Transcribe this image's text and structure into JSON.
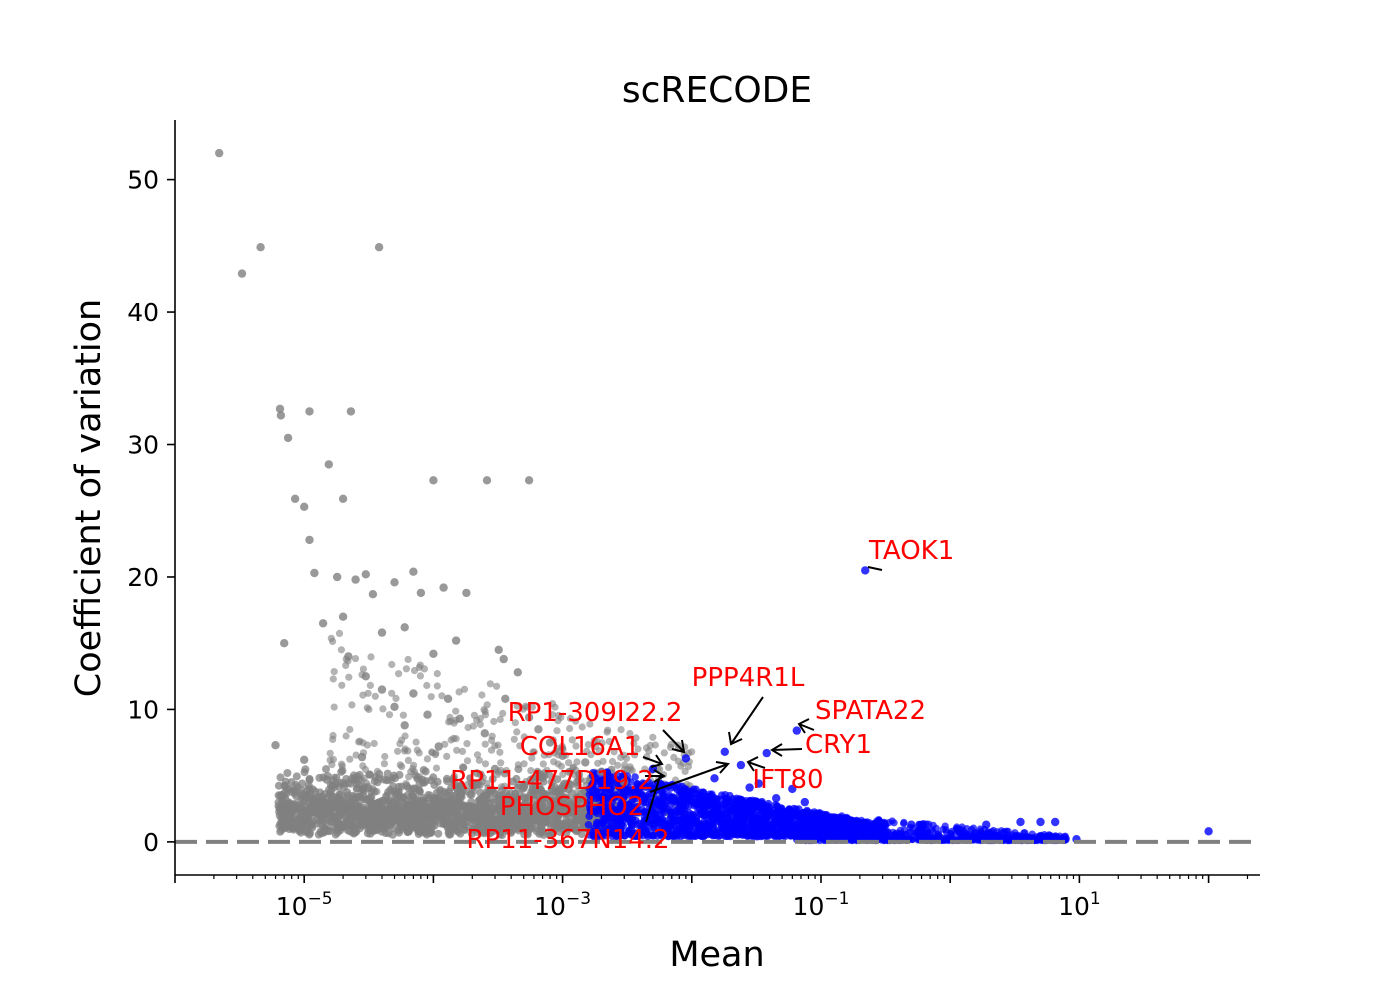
{
  "chart_data": {
    "type": "scatter",
    "title": "scRECODE",
    "xlabel": "Mean",
    "ylabel": "Coefficient of variation",
    "xscale": "log",
    "xlim": [
      1e-06,
      250
    ],
    "ylim": [
      -2.5,
      54.5
    ],
    "grid": false,
    "reference_line": {
      "y": 0,
      "style": "dashed",
      "color": "#808080"
    },
    "xticks": [
      {
        "base": "10",
        "exp": "−5",
        "value": 1e-05
      },
      {
        "base": "10",
        "exp": "−3",
        "value": 0.001
      },
      {
        "base": "10",
        "exp": "−1",
        "value": 0.1
      },
      {
        "base": "10",
        "exp": "1",
        "value": 10
      }
    ],
    "yticks": [
      {
        "label": "0",
        "value": 0
      },
      {
        "label": "10",
        "value": 10
      },
      {
        "label": "20",
        "value": 20
      },
      {
        "label": "30",
        "value": 30
      },
      {
        "label": "40",
        "value": 40
      },
      {
        "label": "50",
        "value": 50
      }
    ],
    "colors": {
      "gray_series": "#808080",
      "blue_series": "#0000ff",
      "annotation": "#ff0000",
      "arrow": "#000000"
    },
    "series": [
      {
        "color": "gray",
        "points": [
          [
            2.2e-06,
            52
          ],
          [
            3.3e-06,
            42.9
          ],
          [
            4.6e-06,
            44.9
          ],
          [
            3.8e-05,
            44.9
          ],
          [
            6.5e-06,
            32.7
          ],
          [
            6.6e-06,
            32.2
          ],
          [
            1.1e-05,
            32.5
          ],
          [
            2.3e-05,
            32.5
          ],
          [
            7.5e-06,
            30.5
          ],
          [
            8.5e-06,
            25.9
          ],
          [
            1e-05,
            25.3
          ],
          [
            1.1e-05,
            22.8
          ],
          [
            1.55e-05,
            28.5
          ],
          [
            2e-05,
            25.9
          ],
          [
            0.0001,
            27.3
          ],
          [
            0.00026,
            27.3
          ],
          [
            0.00055,
            27.3
          ],
          [
            7e-06,
            15.0
          ],
          [
            1.2e-05,
            20.3
          ],
          [
            1.4e-05,
            16.5
          ],
          [
            1.8e-05,
            20.0
          ],
          [
            2e-05,
            17.0
          ],
          [
            2.5e-05,
            19.8
          ],
          [
            3e-05,
            20.2
          ],
          [
            3.4e-05,
            18.7
          ],
          [
            4e-05,
            15.8
          ],
          [
            5e-05,
            19.6
          ],
          [
            6e-05,
            16.2
          ],
          [
            7e-05,
            20.4
          ],
          [
            8e-05,
            18.8
          ],
          [
            0.0001,
            14.2
          ],
          [
            0.00012,
            19.2
          ],
          [
            0.00015,
            15.2
          ],
          [
            0.00018,
            18.8
          ],
          [
            0.00032,
            14.5
          ],
          [
            0.00035,
            13.8
          ],
          [
            0.00045,
            12.8
          ],
          [
            6e-05,
            8.8
          ],
          [
            2.2e-05,
            14.0
          ],
          [
            3e-05,
            12.5
          ],
          [
            4e-05,
            11.5
          ],
          [
            5e-05,
            10.2
          ],
          [
            7e-05,
            11.2
          ],
          [
            9e-05,
            9.6
          ],
          [
            0.00013,
            10.8
          ],
          [
            0.00016,
            9.3
          ],
          [
            0.00025,
            8.2
          ],
          [
            0.00036,
            10.8
          ],
          [
            0.00055,
            9.4
          ],
          [
            0.00065,
            8.5
          ],
          [
            0.0008,
            7.5
          ],
          [
            0.001,
            6.5
          ],
          [
            0.0015,
            6.0
          ],
          [
            0.002,
            5.3
          ],
          [
            0.003,
            4.5
          ],
          [
            6e-06,
            7.3
          ],
          [
            1e-05,
            6.2
          ],
          [
            1.5e-05,
            4.7
          ],
          [
            2.8e-05,
            6.4
          ],
          [
            0.00011,
            7.2
          ],
          [
            0.0003,
            5.5
          ],
          [
            0.0005,
            4.2
          ],
          [
            0.0008,
            3.5
          ]
        ]
      },
      {
        "color": "blue",
        "points": [
          [
            0.22,
            20.5
          ],
          [
            0.065,
            8.4
          ],
          [
            0.038,
            6.7
          ],
          [
            0.018,
            6.8
          ],
          [
            0.009,
            6.3
          ],
          [
            0.024,
            5.8
          ],
          [
            0.033,
            4.4
          ],
          [
            0.045,
            3.3
          ],
          [
            0.075,
            3.0
          ],
          [
            0.06,
            4.0
          ],
          [
            0.015,
            4.8
          ],
          [
            0.028,
            4.1
          ],
          [
            0.005,
            5.5
          ],
          [
            0.004,
            4.2
          ],
          [
            0.3,
            1.4
          ],
          [
            0.5,
            1.3
          ],
          [
            1.2,
            0.9
          ],
          [
            1.9,
            1.3
          ],
          [
            3.5,
            1.5
          ],
          [
            5.0,
            1.5
          ],
          [
            6.5,
            1.5
          ],
          [
            9.5,
            0.2
          ],
          [
            100,
            0.8
          ]
        ]
      }
    ],
    "annotations": [
      {
        "label": "TAOK1",
        "x": 0.22,
        "y": 20.5
      },
      {
        "label": "PPP4R1L",
        "x": 0.018,
        "y": 6.8
      },
      {
        "label": "SPATA22",
        "x": 0.065,
        "y": 8.4
      },
      {
        "label": "RP1-309I22.2",
        "x": 0.009,
        "y": 6.3
      },
      {
        "label": "CRY1",
        "x": 0.038,
        "y": 6.7
      },
      {
        "label": "COL16A1",
        "x": 0.0048,
        "y": 5.8
      },
      {
        "label": "IFT80",
        "x": 0.027,
        "y": 5.8
      },
      {
        "label": "RP11-477D19.2",
        "x": 0.005,
        "y": 5.0
      },
      {
        "label": "PHOSPHO2",
        "x": 0.017,
        "y": 5.8
      },
      {
        "label": "RP11-367N14.2",
        "x": 0.005,
        "y": 4.6
      }
    ]
  }
}
